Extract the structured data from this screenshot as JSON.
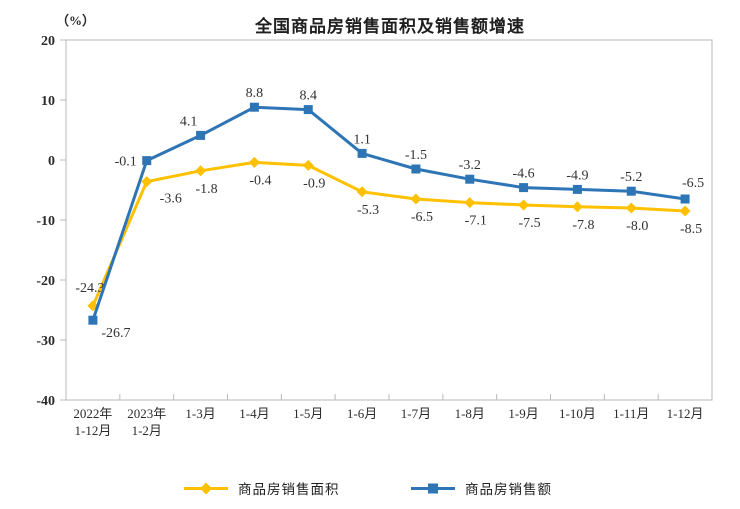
{
  "chart_data": {
    "type": "line",
    "title": "全国商品房销售面积及销售额增速",
    "y_unit": "（%）",
    "categories": [
      "2022年\n1-12月",
      "2023年\n1-2月",
      "1-3月",
      "1-4月",
      "1-5月",
      "1-6月",
      "1-7月",
      "1-8月",
      "1-9月",
      "1-10月",
      "1-11月",
      "1-12月"
    ],
    "series": [
      {
        "name": "商品房销售面积",
        "color": "#FFC000",
        "marker": "diamond",
        "values": [
          -24.3,
          -3.6,
          -1.8,
          -0.4,
          -0.9,
          -5.3,
          -6.5,
          -7.1,
          -7.5,
          -7.8,
          -8.0,
          -8.5
        ],
        "labels": [
          "-24.3",
          "-3.6",
          "-1.8",
          "-0.4",
          "-0.9",
          "-5.3",
          "-6.5",
          "-7.1",
          "-7.5",
          "-7.8",
          "-8.0",
          "-8.5"
        ]
      },
      {
        "name": "商品房销售额",
        "color": "#2E75B6",
        "marker": "square",
        "values": [
          -26.7,
          -0.1,
          4.1,
          8.8,
          8.4,
          1.1,
          -1.5,
          -3.2,
          -4.6,
          -4.9,
          -5.2,
          -6.5
        ],
        "labels": [
          "-26.7",
          "-0.1",
          "4.1",
          "8.8",
          "8.4",
          "1.1",
          "-1.5",
          "-3.2",
          "-4.6",
          "-4.9",
          "-5.2",
          "-6.5"
        ]
      }
    ],
    "ylim": [
      -40,
      20
    ],
    "yticks": [
      20,
      10,
      0,
      -10,
      -20,
      -30,
      -40
    ],
    "grid": false,
    "legend_position": "bottom"
  }
}
